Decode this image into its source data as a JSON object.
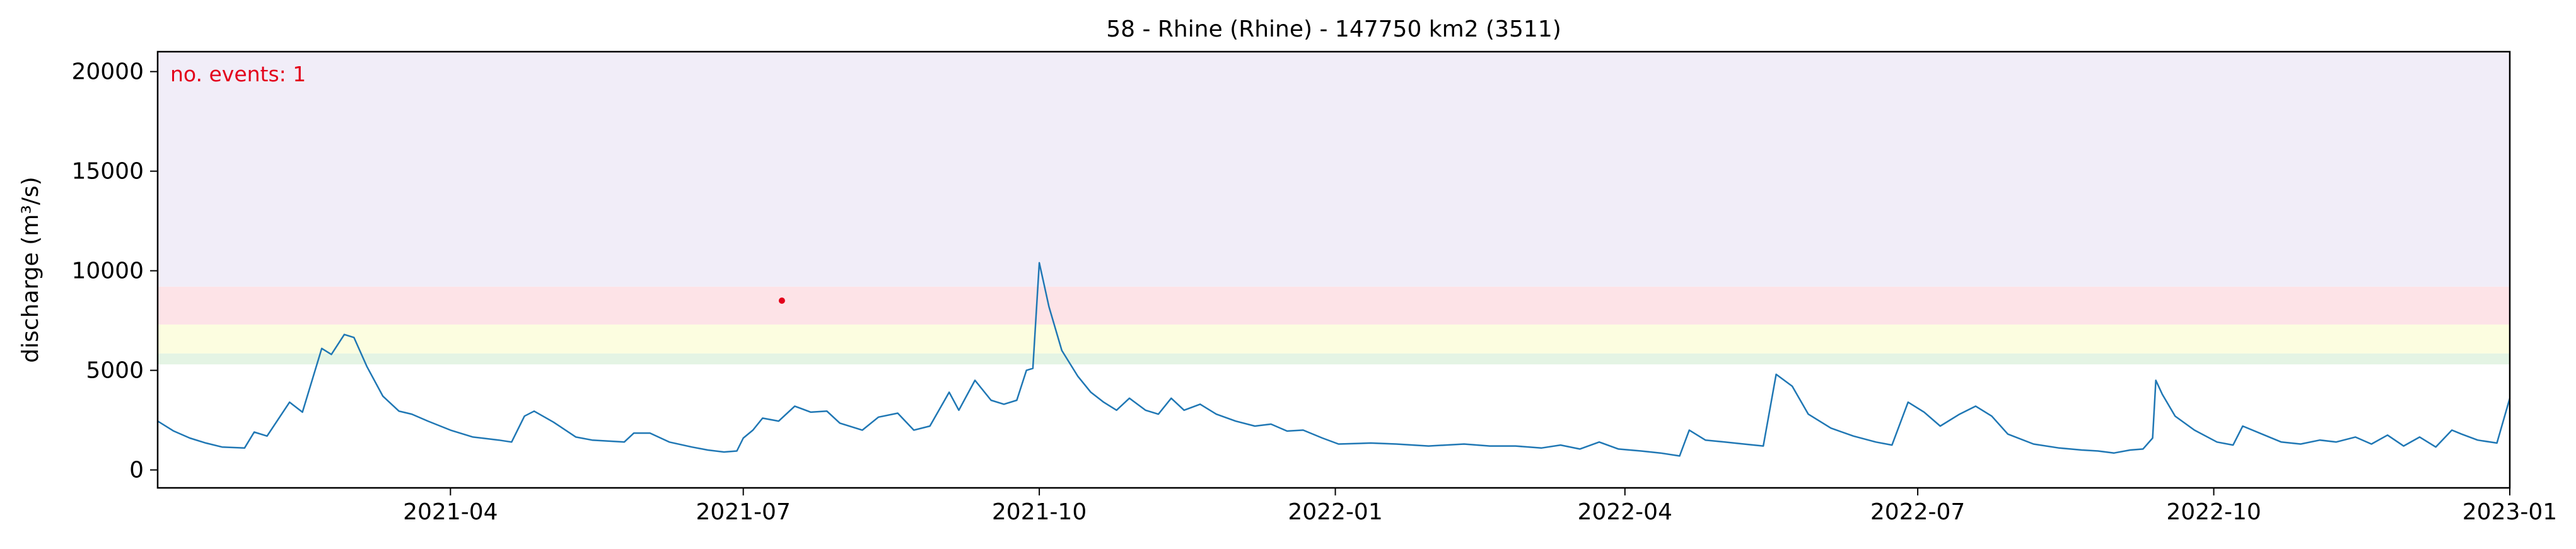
{
  "chart_data": {
    "type": "line",
    "title": "58 - Rhine (Rhine) - 147750 km2 (3511)",
    "xlabel": "",
    "ylabel": "discharge (m³/s)",
    "annotation": "no. events: 1",
    "annotation_color": "#e3001b",
    "line_color": "#1f77b4",
    "event_color": "#e3001b",
    "xlim": [
      "2020-12-31",
      "2023-01-01"
    ],
    "ylim": [
      -900,
      21000
    ],
    "x_ticks": [
      {
        "date": "2021-04-01",
        "label": "2021-04"
      },
      {
        "date": "2021-07-01",
        "label": "2021-07"
      },
      {
        "date": "2021-10-01",
        "label": "2021-10"
      },
      {
        "date": "2022-01-01",
        "label": "2022-01"
      },
      {
        "date": "2022-04-01",
        "label": "2022-04"
      },
      {
        "date": "2022-07-01",
        "label": "2022-07"
      },
      {
        "date": "2022-10-01",
        "label": "2022-10"
      },
      {
        "date": "2023-01-01",
        "label": "2023-01"
      }
    ],
    "y_ticks": [
      {
        "value": 0,
        "label": "0"
      },
      {
        "value": 5000,
        "label": "5000"
      },
      {
        "value": 10000,
        "label": "10000"
      },
      {
        "value": 15000,
        "label": "15000"
      },
      {
        "value": 20000,
        "label": "20000"
      }
    ],
    "threshold_bands": [
      {
        "from": 5300,
        "to": 5850,
        "color": "#e4f4e4"
      },
      {
        "from": 5850,
        "to": 7300,
        "color": "#fcfde0"
      },
      {
        "from": 7300,
        "to": 9200,
        "color": "#fde3e7"
      },
      {
        "from": 9200,
        "to": 21000,
        "color": "#f1edf8"
      }
    ],
    "events": [
      {
        "x": "2021-07-13",
        "y": 8500
      }
    ],
    "series": [
      {
        "points": [
          [
            "2020-12-31",
            2450
          ],
          [
            "2021-01-05",
            1950
          ],
          [
            "2021-01-10",
            1600
          ],
          [
            "2021-01-15",
            1350
          ],
          [
            "2021-01-20",
            1150
          ],
          [
            "2021-01-27",
            1100
          ],
          [
            "2021-01-30",
            1900
          ],
          [
            "2021-02-03",
            1700
          ],
          [
            "2021-02-10",
            3400
          ],
          [
            "2021-02-14",
            2900
          ],
          [
            "2021-02-20",
            6100
          ],
          [
            "2021-02-23",
            5800
          ],
          [
            "2021-02-27",
            6800
          ],
          [
            "2021-03-02",
            6650
          ],
          [
            "2021-03-06",
            5200
          ],
          [
            "2021-03-11",
            3700
          ],
          [
            "2021-03-16",
            2950
          ],
          [
            "2021-03-20",
            2800
          ],
          [
            "2021-03-25",
            2450
          ],
          [
            "2021-04-01",
            2000
          ],
          [
            "2021-04-08",
            1650
          ],
          [
            "2021-04-16",
            1500
          ],
          [
            "2021-04-20",
            1400
          ],
          [
            "2021-04-24",
            2700
          ],
          [
            "2021-04-27",
            2950
          ],
          [
            "2021-05-03",
            2400
          ],
          [
            "2021-05-10",
            1650
          ],
          [
            "2021-05-15",
            1500
          ],
          [
            "2021-05-20",
            1450
          ],
          [
            "2021-05-25",
            1400
          ],
          [
            "2021-05-28",
            1850
          ],
          [
            "2021-06-02",
            1850
          ],
          [
            "2021-06-08",
            1400
          ],
          [
            "2021-06-15",
            1150
          ],
          [
            "2021-06-20",
            1000
          ],
          [
            "2021-06-25",
            900
          ],
          [
            "2021-06-29",
            950
          ],
          [
            "2021-07-01",
            1600
          ],
          [
            "2021-07-04",
            2000
          ],
          [
            "2021-07-07",
            2600
          ],
          [
            "2021-07-12",
            2450
          ],
          [
            "2021-07-17",
            3200
          ],
          [
            "2021-07-22",
            2900
          ],
          [
            "2021-07-27",
            2950
          ],
          [
            "2021-07-31",
            2350
          ],
          [
            "2021-08-07",
            2000
          ],
          [
            "2021-08-12",
            2650
          ],
          [
            "2021-08-18",
            2850
          ],
          [
            "2021-08-23",
            2000
          ],
          [
            "2021-08-28",
            2200
          ],
          [
            "2021-09-03",
            3900
          ],
          [
            "2021-09-06",
            3000
          ],
          [
            "2021-09-11",
            4500
          ],
          [
            "2021-09-16",
            3500
          ],
          [
            "2021-09-20",
            3300
          ],
          [
            "2021-09-24",
            3500
          ],
          [
            "2021-09-27",
            5000
          ],
          [
            "2021-09-29",
            5100
          ],
          [
            "2021-10-01",
            10400
          ],
          [
            "2021-10-04",
            8200
          ],
          [
            "2021-10-08",
            6000
          ],
          [
            "2021-10-13",
            4700
          ],
          [
            "2021-10-17",
            3900
          ],
          [
            "2021-10-21",
            3400
          ],
          [
            "2021-10-25",
            3000
          ],
          [
            "2021-10-29",
            3600
          ],
          [
            "2021-11-03",
            3000
          ],
          [
            "2021-11-07",
            2800
          ],
          [
            "2021-11-11",
            3600
          ],
          [
            "2021-11-15",
            3000
          ],
          [
            "2021-11-20",
            3300
          ],
          [
            "2021-11-25",
            2800
          ],
          [
            "2021-12-01",
            2450
          ],
          [
            "2021-12-07",
            2200
          ],
          [
            "2021-12-12",
            2300
          ],
          [
            "2021-12-17",
            1950
          ],
          [
            "2021-12-22",
            2000
          ],
          [
            "2021-12-28",
            1600
          ],
          [
            "2022-01-02",
            1300
          ],
          [
            "2022-01-12",
            1350
          ],
          [
            "2022-01-20",
            1300
          ],
          [
            "2022-01-30",
            1200
          ],
          [
            "2022-02-10",
            1300
          ],
          [
            "2022-02-18",
            1200
          ],
          [
            "2022-02-26",
            1200
          ],
          [
            "2022-03-06",
            1100
          ],
          [
            "2022-03-12",
            1250
          ],
          [
            "2022-03-18",
            1050
          ],
          [
            "2022-03-24",
            1400
          ],
          [
            "2022-03-30",
            1050
          ],
          [
            "2022-04-06",
            950
          ],
          [
            "2022-04-12",
            850
          ],
          [
            "2022-04-18",
            700
          ],
          [
            "2022-04-21",
            2000
          ],
          [
            "2022-04-26",
            1500
          ],
          [
            "2022-05-02",
            1400
          ],
          [
            "2022-05-08",
            1300
          ],
          [
            "2022-05-14",
            1200
          ],
          [
            "2022-05-18",
            4800
          ],
          [
            "2022-05-23",
            4200
          ],
          [
            "2022-05-28",
            2800
          ],
          [
            "2022-06-04",
            2100
          ],
          [
            "2022-06-11",
            1700
          ],
          [
            "2022-06-18",
            1400
          ],
          [
            "2022-06-23",
            1250
          ],
          [
            "2022-06-28",
            3400
          ],
          [
            "2022-07-03",
            2900
          ],
          [
            "2022-07-08",
            2200
          ],
          [
            "2022-07-14",
            2800
          ],
          [
            "2022-07-19",
            3200
          ],
          [
            "2022-07-24",
            2700
          ],
          [
            "2022-07-29",
            1800
          ],
          [
            "2022-08-06",
            1300
          ],
          [
            "2022-08-14",
            1100
          ],
          [
            "2022-08-21",
            1000
          ],
          [
            "2022-08-26",
            950
          ],
          [
            "2022-08-31",
            850
          ],
          [
            "2022-09-05",
            1000
          ],
          [
            "2022-09-09",
            1050
          ],
          [
            "2022-09-12",
            1600
          ],
          [
            "2022-09-13",
            4500
          ],
          [
            "2022-09-15",
            3800
          ],
          [
            "2022-09-19",
            2700
          ],
          [
            "2022-09-25",
            2000
          ],
          [
            "2022-10-02",
            1400
          ],
          [
            "2022-10-07",
            1250
          ],
          [
            "2022-10-10",
            2200
          ],
          [
            "2022-10-16",
            1800
          ],
          [
            "2022-10-22",
            1400
          ],
          [
            "2022-10-28",
            1300
          ],
          [
            "2022-11-03",
            1500
          ],
          [
            "2022-11-08",
            1400
          ],
          [
            "2022-11-14",
            1650
          ],
          [
            "2022-11-19",
            1300
          ],
          [
            "2022-11-24",
            1750
          ],
          [
            "2022-11-29",
            1200
          ],
          [
            "2022-12-04",
            1650
          ],
          [
            "2022-12-09",
            1150
          ],
          [
            "2022-12-14",
            2000
          ],
          [
            "2022-12-17",
            1800
          ],
          [
            "2022-12-22",
            1500
          ],
          [
            "2022-12-28",
            1350
          ],
          [
            "2023-01-01",
            3600
          ]
        ]
      }
    ]
  }
}
